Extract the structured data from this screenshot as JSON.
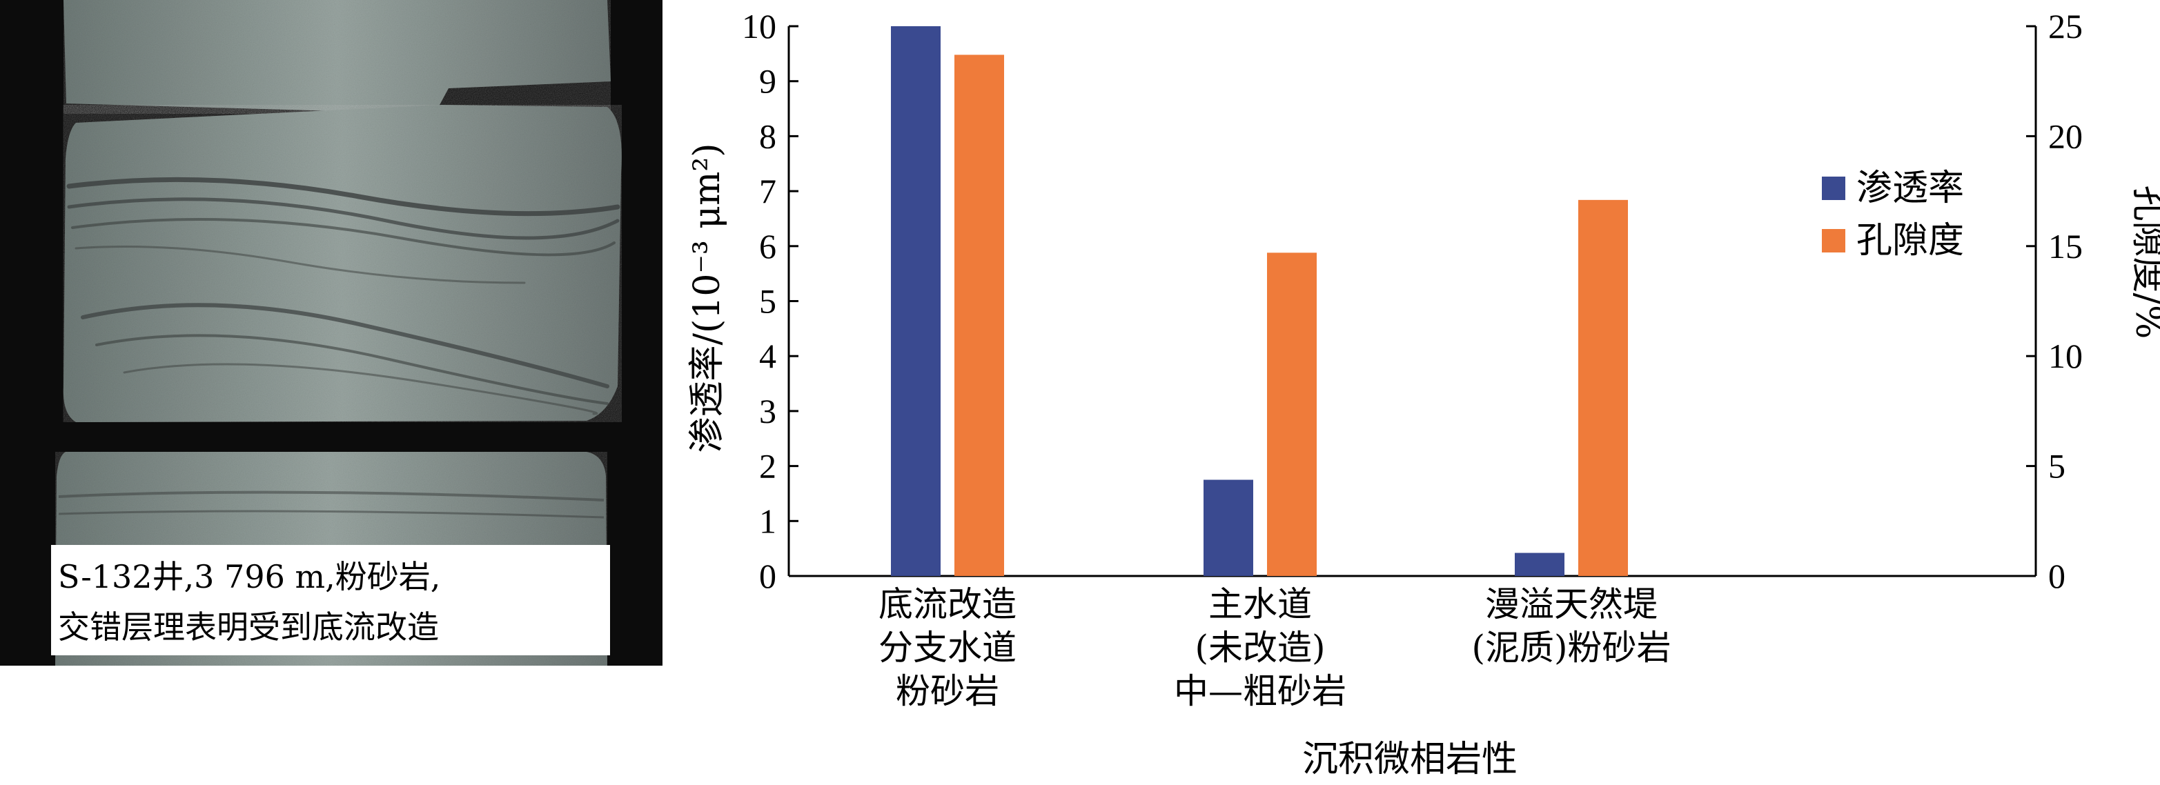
{
  "photo": {
    "caption_lines": [
      "S-132井,3 796 m,粉砂岩,",
      "交错层理表明受到底流改造"
    ]
  },
  "chart_data": {
    "type": "bar",
    "categories": [
      [
        "底流改造",
        "分支水道",
        "粉砂岩"
      ],
      [
        "主水道",
        "(未改造)",
        "中—粗砂岩"
      ],
      [
        "漫溢天然堤",
        "(泥质)粉砂岩"
      ]
    ],
    "series": [
      {
        "name": "渗透率",
        "axis": "left",
        "color": "#3a4a90",
        "values": [
          10.0,
          1.75,
          0.42
        ]
      },
      {
        "name": "孔隙度",
        "axis": "right",
        "color": "#ef7b3a",
        "values": [
          23.7,
          14.7,
          17.1
        ]
      }
    ],
    "xlabel": "沉积微相岩性",
    "ylabel_left": "渗透率/(10⁻³ μm²)",
    "ylabel_right": "孔隙度/%",
    "ylim_left": [
      0,
      10
    ],
    "ylim_right": [
      0,
      25
    ],
    "yticks_left": [
      0,
      1,
      2,
      3,
      4,
      5,
      6,
      7,
      8,
      9,
      10
    ],
    "yticks_right": [
      0,
      5,
      10,
      15,
      20,
      25
    ],
    "legend_position": "right"
  }
}
